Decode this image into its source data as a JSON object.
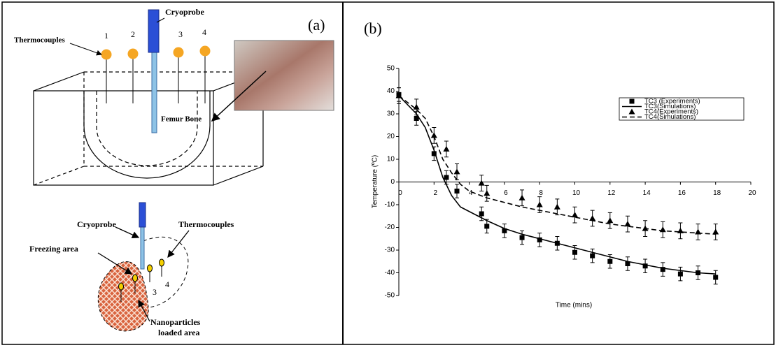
{
  "panel_a": {
    "label": "(a)",
    "top": {
      "probe": "Cryoprobe",
      "thermocouples": "Thermocouples",
      "numbers": [
        "1",
        "2",
        "3",
        "4"
      ],
      "bone": "Femur Bone"
    },
    "bottom": {
      "probe": "Cryoprobe",
      "thermocouples": "Thermocouples",
      "freezing": "Freezing area",
      "numbers": [
        "3",
        "4"
      ],
      "nanoparticles": [
        "Nanoparticles",
        "loaded area"
      ]
    }
  },
  "chart_data": {
    "type": "line",
    "label": "(b)",
    "x_label": "Time (mins)",
    "y_label": "Temperature (ºC)",
    "xlim": [
      0,
      20
    ],
    "xticks": [
      0,
      2,
      4,
      6,
      8,
      10,
      12,
      14,
      16,
      18,
      20
    ],
    "ylim": [
      -50,
      50
    ],
    "yticks": [
      -50,
      -40,
      -30,
      -20,
      -10,
      0,
      10,
      20,
      30,
      40,
      50
    ],
    "legend": "upper right",
    "series": [
      {
        "name": "TC3 (Experiments)",
        "color": "#000000",
        "marker": "square",
        "line": "none",
        "x": [
          0,
          1,
          2,
          2.7,
          3.3,
          4.7,
          5,
          6,
          7,
          8,
          9,
          10,
          11,
          12,
          13,
          14,
          15,
          16,
          17,
          18
        ],
        "values": [
          38.5,
          28,
          12.5,
          2,
          -4,
          -14,
          -19.5,
          -21.5,
          -24.5,
          -25.5,
          -27,
          -31,
          -32.5,
          -35,
          -36,
          -37,
          -38.5,
          -40.5,
          -40,
          -42
        ],
        "errors": [
          3,
          3,
          3,
          3,
          3,
          3,
          3,
          3,
          3,
          3,
          3,
          3,
          3,
          3,
          3,
          3,
          3,
          3,
          3,
          3
        ]
      },
      {
        "name": "TC3(Simulations)",
        "color": "#000000",
        "marker": "none",
        "line": "solid",
        "x": [
          0,
          1,
          1.5,
          2,
          2.5,
          3,
          3.5,
          4,
          5,
          6,
          7,
          8,
          9,
          10,
          11,
          12,
          13,
          14,
          15,
          16,
          17,
          18
        ],
        "values": [
          38,
          30,
          24,
          14,
          2,
          -6,
          -11,
          -13,
          -17,
          -20.5,
          -23,
          -25,
          -27,
          -29,
          -31,
          -33,
          -35,
          -36.5,
          -38,
          -39,
          -40,
          -40.5
        ]
      },
      {
        "name": "TC4(Experiments)",
        "color": "#000000",
        "marker": "triangle",
        "line": "none",
        "x": [
          0,
          1,
          2,
          2.7,
          3.3,
          4.7,
          5,
          7,
          8,
          9,
          10,
          11,
          12,
          13,
          14,
          15,
          16,
          17,
          18
        ],
        "values": [
          38,
          33,
          20.5,
          14.5,
          4.5,
          -0.5,
          -5,
          -7,
          -10,
          -11,
          -14.5,
          -16,
          -17,
          -18.5,
          -20.5,
          -21,
          -21.5,
          -22,
          -22
        ],
        "errors": [
          3.5,
          3.5,
          3.5,
          3.5,
          3.5,
          3.5,
          3.5,
          3.5,
          3.5,
          3.5,
          3.5,
          3.5,
          3.5,
          3.5,
          3.5,
          3.5,
          3.5,
          3.5,
          3.5
        ]
      },
      {
        "name": "TC4(Simulations)",
        "color": "#000000",
        "marker": "none",
        "line": "dashed",
        "x": [
          0,
          1,
          1.5,
          2,
          2.5,
          3,
          3.5,
          4,
          5,
          6,
          7,
          8,
          9,
          10,
          11,
          12,
          13,
          14,
          15,
          16,
          17,
          18
        ],
        "values": [
          38,
          32,
          28,
          20,
          10,
          4,
          -1,
          -4,
          -7,
          -9,
          -11,
          -12.5,
          -14,
          -15.5,
          -17,
          -18.5,
          -19.5,
          -20.5,
          -21.5,
          -22,
          -22.5,
          -23
        ]
      }
    ]
  }
}
